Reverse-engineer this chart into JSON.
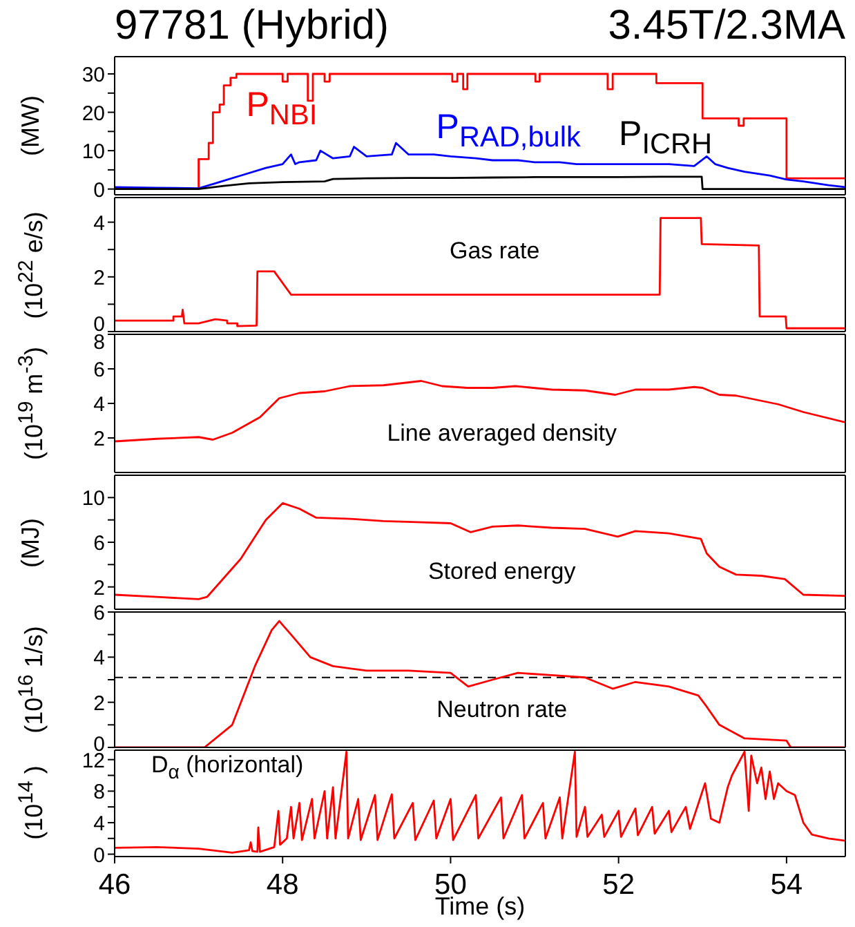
{
  "chart_data": [
    {
      "type": "line",
      "title": "97781 (Hybrid)",
      "subtitle": "3.45T/2.3MA",
      "ylabel": "(MW)",
      "xlim": [
        46,
        54.7
      ],
      "xticks": [
        46,
        48,
        50,
        52,
        54
      ],
      "ylim": [
        -1.5,
        34.5
      ],
      "yticks": [
        0,
        {
          "value": 5,
          "label": null
        },
        10,
        {
          "value": 15,
          "label": null
        },
        20,
        {
          "value": 25,
          "label": null
        },
        30
      ],
      "tick_labels": "y",
      "series": [
        {
          "name": "P$_{NBI}$",
          "color": "#ff0000",
          "x": [
            46,
            47.0,
            47.0,
            47.12,
            47.12,
            47.17,
            47.17,
            47.25,
            47.25,
            47.3,
            47.3,
            47.38,
            47.38,
            47.45,
            47.45,
            48.0,
            48.0,
            48.06,
            48.06,
            48.3,
            48.3,
            48.36,
            48.36,
            48.5,
            48.5,
            48.56,
            48.56,
            50.02,
            50.02,
            50.08,
            50.08,
            50.15,
            50.15,
            50.2,
            50.2,
            51.01,
            51.01,
            51.06,
            51.06,
            51.87,
            51.87,
            51.93,
            51.93,
            52.45,
            52.45,
            53.0,
            53.0,
            53.43,
            53.43,
            53.49,
            53.49,
            54.0,
            54.0,
            54.7
          ],
          "values": [
            0,
            0,
            7.8,
            7.8,
            12,
            12,
            20,
            20,
            22,
            22,
            27,
            27,
            29,
            29,
            30,
            30,
            28,
            28,
            30,
            30,
            23,
            23,
            30,
            30,
            28,
            28,
            30,
            30,
            28,
            28,
            30,
            30,
            26,
            26,
            30,
            30,
            28,
            28,
            30,
            30,
            26,
            26,
            30,
            30,
            27.6,
            27.6,
            18.4,
            18.4,
            16.5,
            16.5,
            18.4,
            18.4,
            2.8,
            2.8
          ]
        },
        {
          "name": "P$_{RAD,bulk}$",
          "color": "#0000ff",
          "x": [
            46,
            46.5,
            47.0,
            47.2,
            47.5,
            47.8,
            48.0,
            48.1,
            48.15,
            48.2,
            48.4,
            48.45,
            48.6,
            48.8,
            48.85,
            49.0,
            49.3,
            49.35,
            49.5,
            49.8,
            50.0,
            50.3,
            50.5,
            50.8,
            51.0,
            51.3,
            51.5,
            51.8,
            52.0,
            52.3,
            52.6,
            52.9,
            53.05,
            53.15,
            53.3,
            53.5,
            53.8,
            54.0,
            54.2,
            54.5,
            54.7
          ],
          "values": [
            0.5,
            0.3,
            0.2,
            1.5,
            3.5,
            5.5,
            6.5,
            9,
            6.5,
            7,
            7.5,
            10,
            8,
            8.5,
            11,
            8.5,
            9,
            12,
            9,
            9,
            8.5,
            8,
            7.5,
            7.5,
            7,
            7,
            6.5,
            6.5,
            6.5,
            6.5,
            6.5,
            6,
            8.5,
            6.5,
            5.5,
            4.5,
            3.5,
            2.5,
            2,
            1,
            0.5
          ]
        },
        {
          "name": "P$_{ICRH}$",
          "color": "#000000",
          "x": [
            46,
            47.0,
            47.3,
            47.6,
            48.0,
            48.5,
            48.6,
            49.0,
            49.5,
            50.0,
            50.5,
            51.0,
            51.5,
            52.0,
            52.5,
            52.99,
            53.0,
            54.7
          ],
          "values": [
            0,
            0,
            0.8,
            1.5,
            1.8,
            2.0,
            2.6,
            2.8,
            2.9,
            2.9,
            3.0,
            3.1,
            3.1,
            3.1,
            3.2,
            3.2,
            0,
            0
          ]
        }
      ]
    },
    {
      "type": "line",
      "ylabel": "(10$^{22}$ e/s)",
      "annotations": [
        "Gas rate"
      ],
      "xlim": [
        46,
        54.7
      ],
      "xticks": [
        46,
        48,
        50,
        52,
        54
      ],
      "ylim": [
        0,
        4.9
      ],
      "yticks": [
        0,
        {
          "value": 1,
          "label": null
        },
        2,
        {
          "value": 3,
          "label": null
        },
        4
      ],
      "tick_labels": "y",
      "series": [
        {
          "color": "#ff0000",
          "x": [
            46,
            46.7,
            46.7,
            46.8,
            46.81,
            46.83,
            47.0,
            47.2,
            47.34,
            47.34,
            47.46,
            47.46,
            47.69,
            47.7,
            47.9,
            48.1,
            52.49,
            52.5,
            52.98,
            52.99,
            53.67,
            53.68,
            53.99,
            54.0,
            54.7
          ],
          "values": [
            0.4,
            0.4,
            0.55,
            0.55,
            0.8,
            0.3,
            0.3,
            0.45,
            0.4,
            0.3,
            0.3,
            0.2,
            0.22,
            2.2,
            2.2,
            1.35,
            1.35,
            4.15,
            4.15,
            3.2,
            3.15,
            0.55,
            0.55,
            0.12,
            0.12
          ]
        }
      ]
    },
    {
      "type": "line",
      "ylabel": "(10$^{19}$ m$^{-3}$)",
      "annotations": [
        "Line averaged density"
      ],
      "xlim": [
        46,
        54.7
      ],
      "xticks": [
        46,
        48,
        50,
        52,
        54
      ],
      "ylim": [
        0,
        8
      ],
      "yticks": [
        2,
        4,
        6,
        8
      ],
      "tick_labels": "y",
      "series": [
        {
          "color": "#ff0000",
          "x": [
            46,
            46.5,
            47.0,
            47.17,
            47.4,
            47.73,
            47.96,
            48.2,
            48.5,
            48.8,
            49.2,
            49.65,
            49.9,
            50.2,
            50.5,
            50.77,
            51.2,
            51.6,
            51.96,
            52.2,
            52.6,
            52.9,
            53.0,
            53.2,
            53.4,
            53.9,
            54.2,
            54.7
          ],
          "values": [
            1.8,
            1.95,
            2.05,
            1.9,
            2.3,
            3.2,
            4.3,
            4.6,
            4.7,
            5.0,
            5.05,
            5.3,
            5.0,
            4.9,
            4.9,
            5.0,
            4.8,
            4.75,
            4.5,
            4.8,
            4.8,
            4.95,
            4.9,
            4.5,
            4.45,
            3.95,
            3.5,
            2.9
          ]
        }
      ]
    },
    {
      "type": "line",
      "ylabel": "(MJ)",
      "annotations": [
        "Stored energy"
      ],
      "xlim": [
        46,
        54.7
      ],
      "xticks": [
        46,
        48,
        50,
        52,
        54
      ],
      "ylim": [
        0,
        12
      ],
      "yticks": [
        2,
        {
          "value": 4,
          "label": null
        },
        6,
        {
          "value": 8,
          "label": null
        },
        10
      ],
      "tick_labels": "y",
      "series": [
        {
          "color": "#ff0000",
          "x": [
            46,
            46.5,
            47.0,
            47.1,
            47.5,
            47.8,
            48.0,
            48.2,
            48.4,
            48.8,
            49.2,
            49.6,
            50.0,
            50.24,
            50.5,
            50.8,
            51.2,
            51.6,
            51.99,
            52.2,
            52.6,
            52.98,
            53.05,
            53.2,
            53.4,
            53.7,
            53.98,
            54.2,
            54.7
          ],
          "values": [
            1.3,
            1.1,
            0.9,
            1.1,
            4.5,
            8.0,
            9.5,
            9.0,
            8.2,
            8.1,
            7.9,
            7.8,
            7.7,
            6.9,
            7.4,
            7.5,
            7.3,
            7.2,
            6.5,
            7.0,
            6.8,
            6.3,
            5.0,
            3.8,
            3.1,
            3.0,
            2.7,
            1.3,
            1.2
          ]
        }
      ]
    },
    {
      "type": "line",
      "ylabel": "(10$^{16}$ 1/s)",
      "annotations": [
        "Neutron rate"
      ],
      "xlim": [
        46,
        54.7
      ],
      "xticks": [
        46,
        48,
        50,
        52,
        54
      ],
      "ylim": [
        0,
        6
      ],
      "yticks": [
        0,
        {
          "value": 1,
          "label": null
        },
        2,
        {
          "value": 3,
          "label": null
        },
        4,
        {
          "value": 5,
          "label": null
        },
        6
      ],
      "tick_labels": "y",
      "ref_lines": [
        {
          "axis": "y",
          "value": 3.1,
          "color": "#000000",
          "line_style": "dashed"
        }
      ],
      "series": [
        {
          "color": "#ff0000",
          "x": [
            46,
            47.07,
            47.4,
            47.67,
            47.87,
            47.96,
            48.1,
            48.33,
            48.6,
            49.0,
            49.5,
            50.0,
            50.21,
            50.5,
            50.8,
            51.2,
            51.6,
            51.93,
            52.2,
            52.6,
            52.95,
            53.05,
            53.2,
            53.5,
            54.0,
            54.05,
            54.7
          ],
          "values": [
            0,
            0,
            1.0,
            3.6,
            5.2,
            5.6,
            5.0,
            4.0,
            3.6,
            3.4,
            3.4,
            3.3,
            2.7,
            3.0,
            3.3,
            3.2,
            3.1,
            2.6,
            2.9,
            2.7,
            2.3,
            1.8,
            1.0,
            0.4,
            0.3,
            0,
            0
          ]
        }
      ]
    },
    {
      "type": "line",
      "ylabel": "(10$^{14}$ )",
      "xlabel": "Time (s)",
      "annotations": [
        "D$_{α}$ (horizontal)"
      ],
      "xlim": [
        46,
        54.7
      ],
      "xticks": [
        46,
        48,
        50,
        52,
        54
      ],
      "ylim": [
        -0.3,
        13.2
      ],
      "yticks": [
        0,
        {
          "value": 2,
          "label": null
        },
        4,
        {
          "value": 6,
          "label": null
        },
        8,
        {
          "value": 10,
          "label": null
        },
        12
      ],
      "series": [
        {
          "color": "#ff0000",
          "x": [
            46,
            46.5,
            47.0,
            47.4,
            47.6,
            47.62,
            47.64,
            47.7,
            47.71,
            47.73,
            47.9,
            47.95,
            47.97,
            48.05,
            48.1,
            48.13,
            48.2,
            48.23,
            48.35,
            48.38,
            48.5,
            48.53,
            48.6,
            48.63,
            48.76,
            48.78,
            48.9,
            48.93,
            49.1,
            49.13,
            49.3,
            49.33,
            49.55,
            49.58,
            49.8,
            49.83,
            50.0,
            50.03,
            50.3,
            50.33,
            50.6,
            50.63,
            50.85,
            50.88,
            51.1,
            51.13,
            51.3,
            51.33,
            51.48,
            51.5,
            51.6,
            51.63,
            51.8,
            51.83,
            52.0,
            52.03,
            52.2,
            52.23,
            52.4,
            52.43,
            52.6,
            52.63,
            52.8,
            52.85,
            53.03,
            53.1,
            53.2,
            53.3,
            53.35,
            53.5,
            53.55,
            53.58,
            53.65,
            53.7,
            53.75,
            53.8,
            53.85,
            53.9,
            54.0,
            54.1,
            54.2,
            54.3,
            54.5,
            54.7
          ],
          "values": [
            0.8,
            0.9,
            0.7,
            0.2,
            0.5,
            1.5,
            0.4,
            0.3,
            3.4,
            0.3,
            0.9,
            5.5,
            1.2,
            2,
            6,
            2,
            6.5,
            1.8,
            7,
            2,
            8,
            2,
            8.5,
            2,
            13,
            2,
            7,
            1.8,
            7.5,
            1.8,
            7.6,
            2,
            6.5,
            1.8,
            6.8,
            2,
            7,
            1.8,
            7.5,
            2,
            7.2,
            2,
            7.5,
            2,
            6.5,
            2,
            7.2,
            2,
            13,
            2.2,
            6,
            2.2,
            5,
            2.2,
            5.5,
            2.2,
            5.8,
            2.4,
            6,
            2.6,
            5.5,
            2.8,
            6,
            3.2,
            9,
            4.5,
            4,
            8.5,
            10,
            13,
            5.5,
            12.5,
            9,
            11,
            7,
            10.5,
            7,
            9,
            8,
            7.5,
            4,
            2.5,
            2,
            1.7
          ]
        }
      ]
    }
  ]
}
